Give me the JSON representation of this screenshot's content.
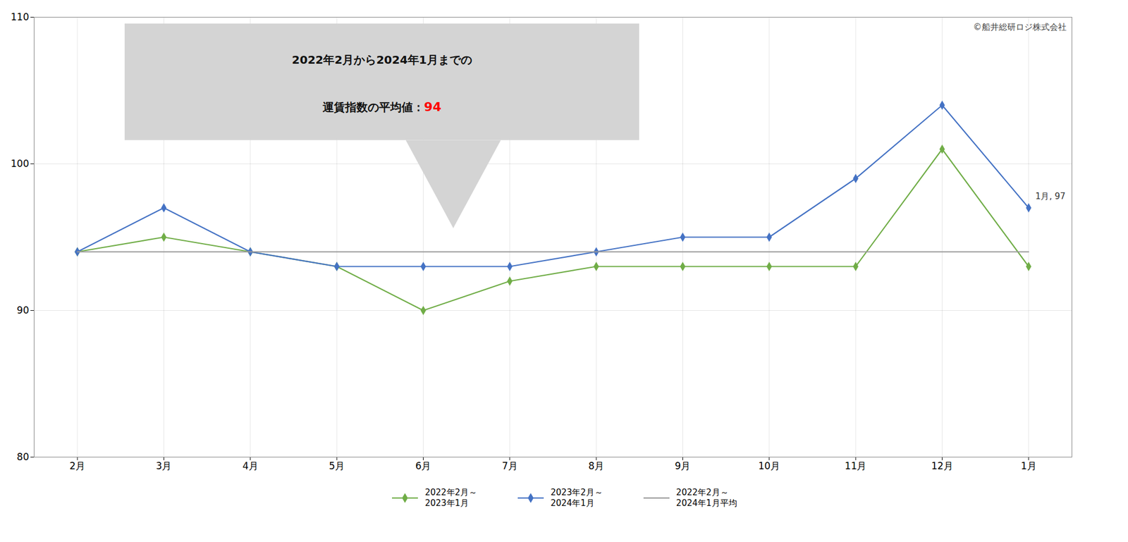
{
  "chart_data": {
    "type": "line",
    "categories": [
      "2月",
      "3月",
      "4月",
      "5月",
      "6月",
      "7月",
      "8月",
      "9月",
      "10月",
      "11月",
      "12月",
      "1月"
    ],
    "series": [
      {
        "name": "2022年2月～\n2023年1月",
        "color": "#70ad47",
        "marker": "diamond",
        "line_style": "solid",
        "values": [
          94,
          95,
          94,
          93,
          90,
          92,
          93,
          93,
          93,
          93,
          101,
          93
        ]
      },
      {
        "name": "2023年2月～\n2024年1月",
        "color": "#4472c4",
        "marker": "diamond",
        "line_style": "solid",
        "values": [
          94,
          97,
          94,
          93,
          93,
          93,
          94,
          95,
          95,
          99,
          104,
          97
        ]
      },
      {
        "name": "2022年2月～\n2024年1月平均",
        "color": "#999999",
        "marker": "none",
        "line_style": "solid",
        "values": [
          94,
          94,
          94,
          94,
          94,
          94,
          94,
          94,
          94,
          94,
          94,
          94
        ]
      }
    ],
    "ylim": [
      80,
      110
    ],
    "yticks": [
      80,
      90,
      100,
      110
    ],
    "grid": true,
    "legend": "bottom",
    "callout": [
      "2022年2月から2024年1月までの",
      "運賃指数の平均値："
    ],
    "callout_value": {
      "text": "94",
      "color": "#ff0000"
    },
    "point_label": {
      "text": "1月, 97",
      "x": "1月",
      "y": 97
    },
    "credit": "©船井総研ロジ株式会社"
  }
}
